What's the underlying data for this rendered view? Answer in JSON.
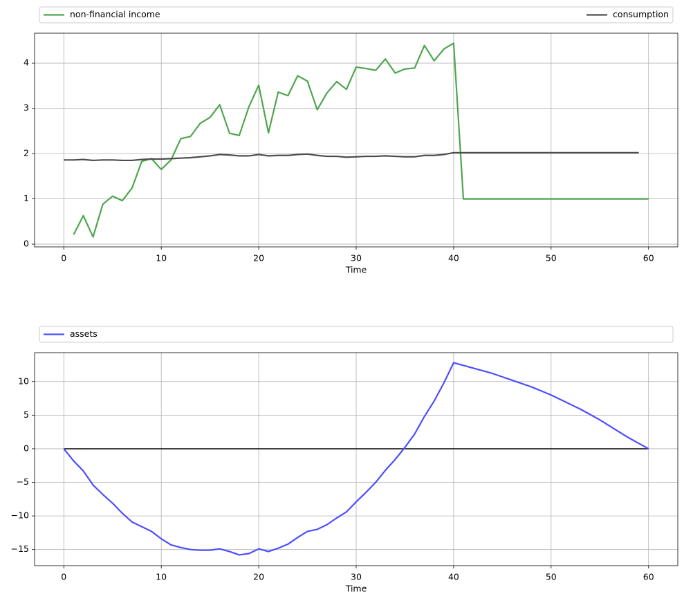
{
  "chart_data": [
    {
      "type": "line",
      "xlabel": "Time",
      "grid": true,
      "xlim": [
        -3,
        63
      ],
      "xticks": [
        0,
        10,
        20,
        30,
        40,
        50,
        60
      ],
      "ylim": [
        -0.06,
        4.66
      ],
      "yticks": [
        0,
        1,
        2,
        3,
        4
      ],
      "series": [
        {
          "name": "non-financial income",
          "color": "#4da64d",
          "x": [
            1,
            2,
            3,
            4,
            5,
            6,
            7,
            8,
            9,
            10,
            11,
            12,
            13,
            14,
            15,
            16,
            17,
            18,
            19,
            20,
            21,
            22,
            23,
            24,
            25,
            26,
            27,
            28,
            29,
            30,
            31,
            32,
            33,
            34,
            35,
            36,
            37,
            38,
            39,
            40,
            41,
            42,
            43,
            44,
            45,
            46,
            47,
            48,
            49,
            50,
            51,
            52,
            53,
            54,
            55,
            56,
            57,
            58,
            59,
            60
          ],
          "values": [
            0.21,
            0.63,
            0.16,
            0.88,
            1.06,
            0.96,
            1.24,
            1.83,
            1.89,
            1.65,
            1.86,
            2.33,
            2.38,
            2.67,
            2.8,
            3.08,
            2.45,
            2.4,
            3.04,
            3.51,
            2.46,
            3.36,
            3.28,
            3.72,
            3.6,
            2.97,
            3.34,
            3.59,
            3.42,
            3.91,
            3.88,
            3.84,
            4.09,
            3.78,
            3.87,
            3.89,
            4.39,
            4.05,
            4.31,
            4.44,
            1,
            1,
            1,
            1,
            1,
            1,
            1,
            1,
            1,
            1,
            1,
            1,
            1,
            1,
            1,
            1,
            1,
            1,
            1,
            1
          ]
        },
        {
          "name": "consumption",
          "color": "#4d4d4d",
          "x": [
            0,
            1,
            2,
            3,
            4,
            5,
            6,
            7,
            8,
            9,
            10,
            11,
            12,
            13,
            14,
            15,
            16,
            17,
            18,
            19,
            20,
            21,
            22,
            23,
            24,
            25,
            26,
            27,
            28,
            29,
            30,
            31,
            32,
            33,
            34,
            35,
            36,
            37,
            38,
            39,
            40,
            41,
            42,
            43,
            44,
            45,
            46,
            47,
            48,
            49,
            50,
            51,
            52,
            53,
            54,
            55,
            56,
            57,
            58,
            59
          ],
          "values": [
            1.86,
            1.86,
            1.87,
            1.85,
            1.86,
            1.86,
            1.85,
            1.85,
            1.87,
            1.88,
            1.88,
            1.89,
            1.9,
            1.91,
            1.93,
            1.95,
            1.98,
            1.97,
            1.95,
            1.95,
            1.98,
            1.95,
            1.96,
            1.96,
            1.98,
            1.99,
            1.96,
            1.94,
            1.94,
            1.92,
            1.93,
            1.94,
            1.94,
            1.95,
            1.94,
            1.93,
            1.93,
            1.96,
            1.96,
            1.98,
            2.02,
            2.02,
            2.02,
            2.02,
            2.02,
            2.02,
            2.02,
            2.02,
            2.02,
            2.02,
            2.02,
            2.02,
            2.02,
            2.02,
            2.02,
            2.02,
            2.02,
            2.02,
            2.02,
            2.02
          ]
        }
      ]
    },
    {
      "type": "line",
      "xlabel": "Time",
      "grid": true,
      "xlim": [
        -3,
        63
      ],
      "xticks": [
        0,
        10,
        20,
        30,
        40,
        50,
        60
      ],
      "ylim": [
        -17.4,
        14.3
      ],
      "yticks": [
        {
          "value": -15,
          "label": "−15"
        },
        {
          "value": -10,
          "label": "−10"
        },
        {
          "value": -5,
          "label": "−5"
        },
        0,
        5,
        10
      ],
      "hline": {
        "y": 0,
        "xmin": 0,
        "xmax": 60,
        "color": "#000000"
      },
      "series": [
        {
          "name": "assets",
          "color": "#4d4dff",
          "x": [
            0,
            1,
            2,
            3,
            4,
            5,
            6,
            7,
            8,
            9,
            10,
            11,
            12,
            13,
            14,
            15,
            16,
            17,
            18,
            19,
            20,
            21,
            22,
            23,
            24,
            25,
            26,
            27,
            28,
            29,
            30,
            31,
            32,
            33,
            34,
            35,
            36,
            37,
            38,
            39,
            40,
            41,
            42,
            43,
            44,
            45,
            46,
            47,
            48,
            49,
            50,
            51,
            52,
            53,
            54,
            55,
            56,
            57,
            58,
            59,
            60
          ],
          "values": [
            0,
            -1.8,
            -3.3,
            -5.4,
            -6.8,
            -8.1,
            -9.6,
            -10.9,
            -11.6,
            -12.3,
            -13.4,
            -14.3,
            -14.7,
            -15,
            -15.1,
            -15.1,
            -14.9,
            -15.3,
            -15.8,
            -15.6,
            -14.9,
            -15.3,
            -14.8,
            -14.2,
            -13.2,
            -12.3,
            -12,
            -11.3,
            -10.3,
            -9.4,
            -7.9,
            -6.5,
            -5,
            -3.2,
            -1.6,
            0.2,
            2.2,
            4.8,
            7.1,
            9.8,
            12.8,
            12.4,
            12,
            11.6,
            11.2,
            10.7,
            10.2,
            9.7,
            9.2,
            8.6,
            8,
            7.3,
            6.6,
            5.9,
            5.1,
            4.3,
            3.4,
            2.5,
            1.6,
            0.8,
            0
          ]
        }
      ]
    }
  ]
}
